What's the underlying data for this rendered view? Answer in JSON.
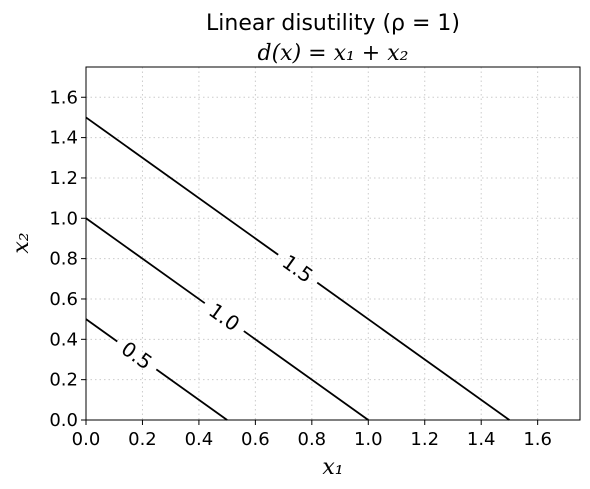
{
  "chart_data": {
    "type": "contour",
    "title": "Linear disutility (ρ = 1)",
    "subtitle": "d(x) = x₁ + x₂",
    "xlabel": "x₁",
    "ylabel": "x₂",
    "xlim": [
      0.0,
      1.75
    ],
    "ylim": [
      0.0,
      1.75
    ],
    "xticks": [
      "0.0",
      "0.2",
      "0.4",
      "0.6",
      "0.8",
      "1.0",
      "1.2",
      "1.4",
      "1.6"
    ],
    "yticks": [
      "0.0",
      "0.2",
      "0.4",
      "0.6",
      "0.8",
      "1.0",
      "1.2",
      "1.4",
      "1.6"
    ],
    "grid": true,
    "levels": [
      {
        "value": 0.5,
        "label": "0.5",
        "label_at": [
          0.18,
          0.32
        ]
      },
      {
        "value": 1.0,
        "label": "1.0",
        "label_at": [
          0.49,
          0.51
        ]
      },
      {
        "value": 1.5,
        "label": "1.5",
        "label_at": [
          0.75,
          0.75
        ]
      }
    ],
    "line_color": "#000000"
  }
}
